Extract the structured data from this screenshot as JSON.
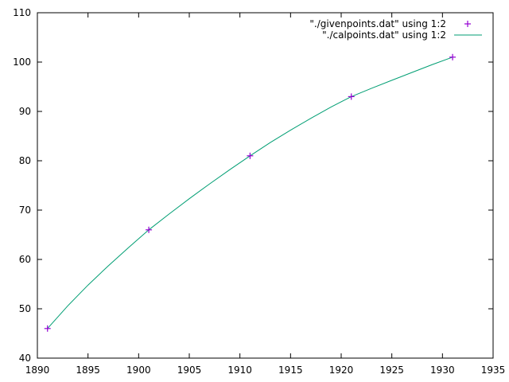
{
  "chart_data": {
    "type": "line",
    "xlim": [
      1890,
      1935
    ],
    "ylim": [
      40,
      110
    ],
    "x_ticks": [
      1890,
      1895,
      1900,
      1905,
      1910,
      1915,
      1920,
      1925,
      1930,
      1935
    ],
    "y_ticks": [
      40,
      50,
      60,
      70,
      80,
      90,
      100,
      110
    ],
    "grid": false,
    "legend_position": "top-right",
    "series": [
      {
        "name": "\"./givenpoints.dat\" using 1:2",
        "style": "points",
        "marker": "plus",
        "color": "#9400d3",
        "x": [
          1891,
          1901,
          1911,
          1921,
          1931
        ],
        "y": [
          46,
          66,
          81,
          93,
          101
        ]
      },
      {
        "name": "\"./calpoints.dat\" using 1:2",
        "style": "line",
        "color": "#009e73",
        "x": [
          1891,
          1893,
          1895,
          1897,
          1899,
          1901,
          1903,
          1905,
          1907,
          1909,
          1911,
          1913,
          1915,
          1917,
          1919,
          1921,
          1923,
          1925,
          1927,
          1929,
          1931
        ],
        "y": [
          46,
          50.6,
          54.8,
          58.7,
          62.4,
          66,
          69.2,
          72.3,
          75.3,
          78.2,
          81,
          83.7,
          86.2,
          88.6,
          90.9,
          93,
          94.7,
          96.3,
          97.9,
          99.5,
          101
        ]
      }
    ]
  }
}
